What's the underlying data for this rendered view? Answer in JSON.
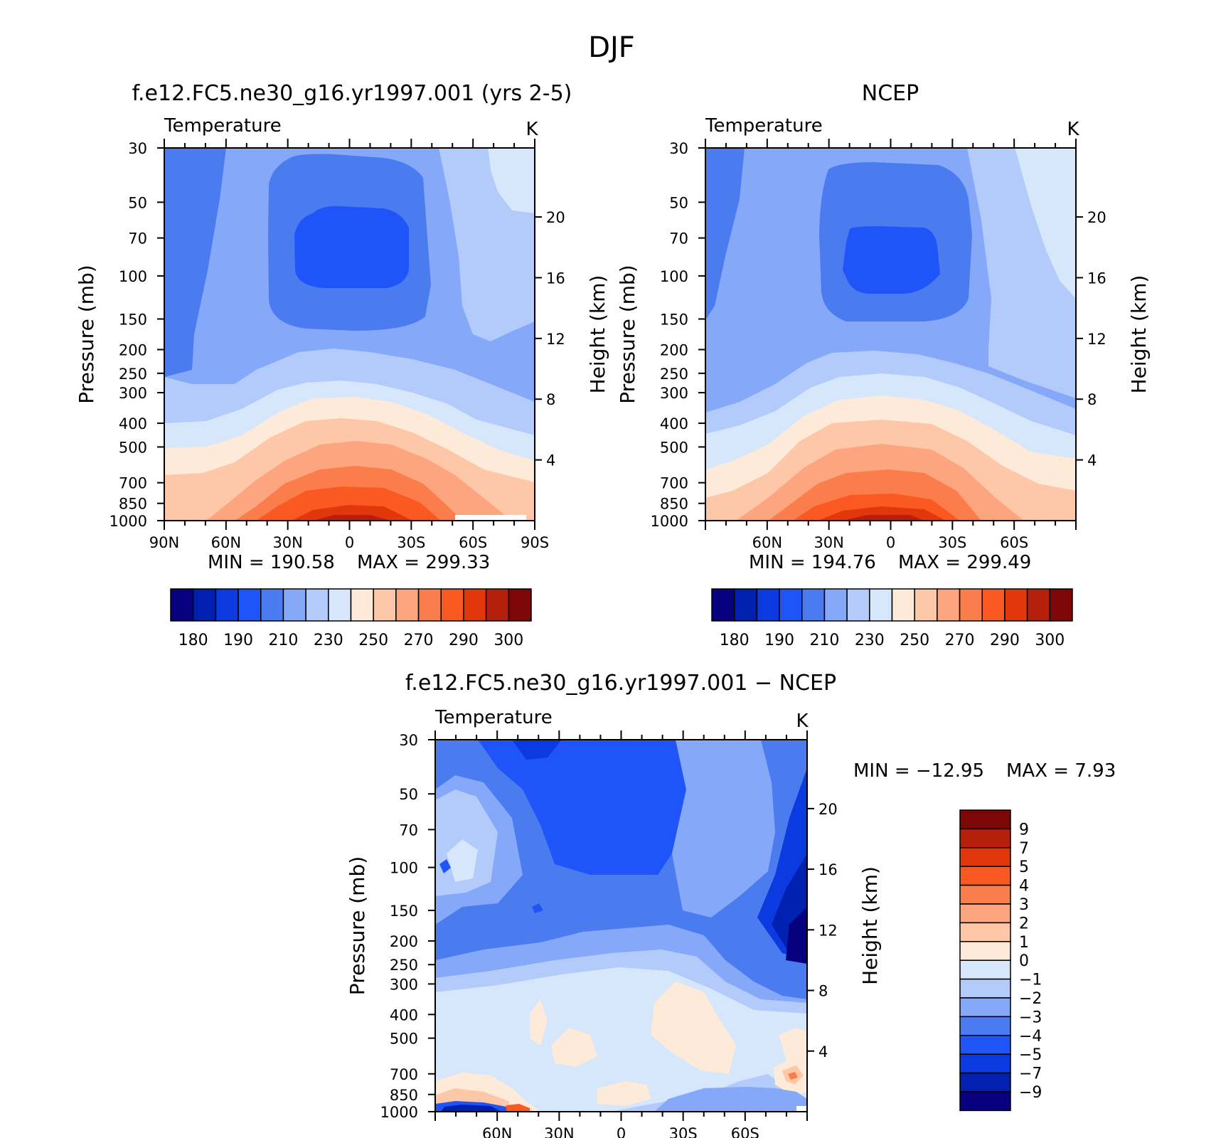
{
  "figure_title": "DJF",
  "chart_data": [
    {
      "type": "heatmap",
      "panel_title": "f.e12.FC5.ne30_g16.yr1997.001 (yrs 2-5)",
      "variable": "Temperature",
      "units": "K",
      "ylabel": "Pressure (mb)",
      "y2label": "Height (km)",
      "y_ticks": [
        "30",
        "50",
        "70",
        "100",
        "150",
        "200",
        "250",
        "300",
        "400",
        "500",
        "700",
        "850",
        "1000"
      ],
      "y2_ticks": [
        "20",
        "16",
        "12",
        "8",
        "4"
      ],
      "x_ticks": [
        "90N",
        "60N",
        "30N",
        "0",
        "30S",
        "60S",
        "90S"
      ],
      "min_label": "MIN  =  190.58",
      "max_label": "MAX  =  299.33",
      "min": 190.58,
      "max": 299.33,
      "colorbar_labels": [
        "180",
        "190",
        "210",
        "230",
        "250",
        "270",
        "290",
        "300"
      ]
    },
    {
      "type": "heatmap",
      "panel_title": "NCEP",
      "variable": "Temperature",
      "units": "K",
      "ylabel": "Pressure (mb)",
      "y2label": "Height (km)",
      "y_ticks": [
        "30",
        "50",
        "70",
        "100",
        "150",
        "200",
        "250",
        "300",
        "400",
        "500",
        "700",
        "850",
        "1000"
      ],
      "y2_ticks": [
        "20",
        "16",
        "12",
        "8",
        "4"
      ],
      "x_ticks": [
        "60N",
        "30N",
        "0",
        "30S",
        "60S"
      ],
      "min_label": "MIN  =  194.76",
      "max_label": "MAX  =  299.49",
      "min": 194.76,
      "max": 299.49,
      "colorbar_labels": [
        "180",
        "190",
        "210",
        "230",
        "250",
        "270",
        "290",
        "300"
      ]
    },
    {
      "type": "heatmap",
      "panel_title": "f.e12.FC5.ne30_g16.yr1997.001 − NCEP",
      "variable": "Temperature",
      "units": "K",
      "ylabel": "Pressure (mb)",
      "y2label": "Height (km)",
      "y_ticks": [
        "30",
        "50",
        "70",
        "100",
        "150",
        "200",
        "250",
        "300",
        "400",
        "500",
        "700",
        "850",
        "1000"
      ],
      "y2_ticks": [
        "20",
        "16",
        "12",
        "8",
        "4"
      ],
      "x_ticks": [
        "60N",
        "30N",
        "0",
        "30S",
        "60S"
      ],
      "min_label": "MIN  = −12.95",
      "max_label": "MAX  =     7.93",
      "min": -12.95,
      "max": 7.93,
      "colorbar_labels": [
        "9",
        "7",
        "5",
        "4",
        "3",
        "2",
        "1",
        "0",
        "−1",
        "−2",
        "−3",
        "−4",
        "−5",
        "−7",
        "−9"
      ]
    }
  ],
  "abs_palette": [
    "#07007f",
    "#0020b0",
    "#0a3ae0",
    "#1f55f8",
    "#4a7cf0",
    "#85a8f8",
    "#b2cbfa",
    "#d6e6fb",
    "#feead8",
    "#fdc7a8",
    "#fca57e",
    "#fb7d4c",
    "#fa5a22",
    "#e2370b",
    "#b61f0c",
    "#7d0707"
  ],
  "diff_palette": [
    "#07007f",
    "#0020b0",
    "#0a3ae0",
    "#1f55f8",
    "#4a7cf0",
    "#85a8f8",
    "#b2cbfa",
    "#d6e6fb",
    "#feead8",
    "#fdc7a8",
    "#fca57e",
    "#fb7d4c",
    "#fa5a22",
    "#e2370b",
    "#b61f0c",
    "#7d0707"
  ]
}
